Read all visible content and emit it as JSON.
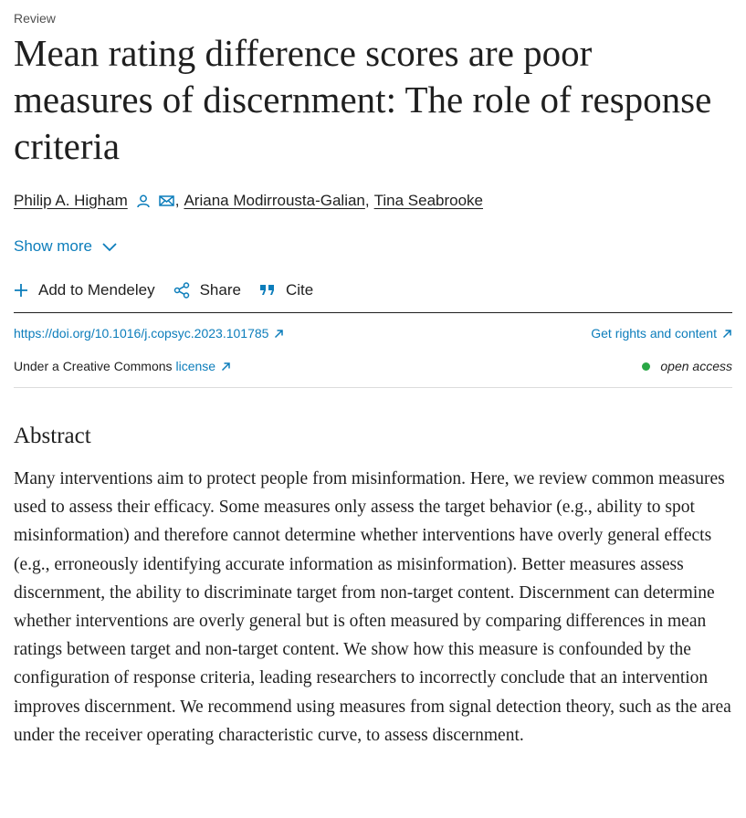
{
  "article": {
    "type": "Review",
    "title": "Mean rating difference scores are poor measures of discernment: The role of response criteria"
  },
  "authors": [
    {
      "name": "Philip A. Higham",
      "has_profile_icon": true,
      "has_email_icon": true
    },
    {
      "name": "Ariana Modirrousta-Galian"
    },
    {
      "name": "Tina Seabrooke"
    }
  ],
  "author_separator": ",",
  "show_more_label": "Show more",
  "toolbar": {
    "mendeley_label": "Add to Mendeley",
    "share_label": "Share",
    "cite_label": "Cite"
  },
  "links": {
    "doi": "https://doi.org/10.1016/j.copsyc.2023.101785",
    "rights": "Get rights and content",
    "license_prefix": "Under a Creative Commons",
    "license_link": "license",
    "open_access": "open access"
  },
  "abstract": {
    "heading": "Abstract",
    "text": "Many interventions aim to protect people from misinformation. Here, we review common measures used to assess their efficacy. Some measures only assess the target behavior (e.g., ability to spot misinformation) and therefore cannot determine whether interventions have overly general effects (e.g., erroneously identifying accurate information as misinformation). Better measures assess discernment, the ability to discriminate target from non-target content. Discernment can determine whether interventions are overly general but is often measured by comparing differences in mean ratings between target and non-target content. We show how this measure is confounded by the configuration of response criteria, leading researchers to incorrectly conclude that an intervention improves discernment. We recommend using measures from signal detection theory, such as the area under the receiver operating characteristic curve, to assess discernment."
  },
  "colors": {
    "link": "#0c7dbb",
    "text": "#1f1f1f",
    "open_access_dot": "#29a745",
    "divider": "#dcdcdc"
  },
  "icons": [
    "person-icon",
    "envelope-icon",
    "chevron-down-icon",
    "plus-icon",
    "share-icon",
    "quote-icon",
    "external-link-icon"
  ]
}
